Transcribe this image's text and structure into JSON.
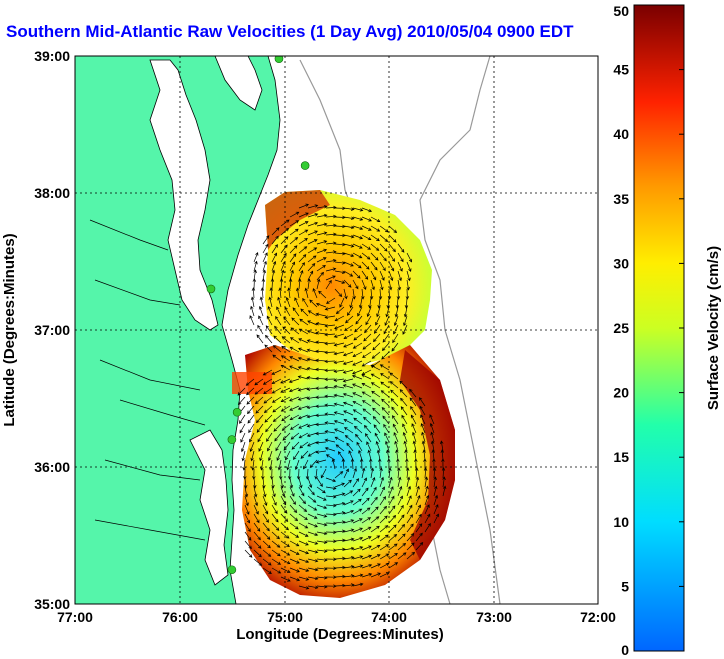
{
  "title": "Southern Mid-Atlantic Raw Velocities (1 Day Avg) 2010/05/04 0900 EDT",
  "xlabel": "Longitude (Degrees:Minutes)",
  "ylabel": "Latitude (Degrees:Minutes)",
  "x_ticks": [
    "77:00",
    "76:00",
    "75:00",
    "74:00",
    "73:00",
    "72:00"
  ],
  "y_ticks": [
    "39:00",
    "38:00",
    "37:00",
    "36:00",
    "35:00"
  ],
  "colorbar": {
    "label": "Surface Velocity (cm/s)",
    "ticks": [
      "0",
      "5",
      "10",
      "15",
      "20",
      "25",
      "30",
      "35",
      "40",
      "45",
      "50"
    ],
    "min": 0,
    "max": 50
  },
  "colors": {
    "land": "#55f5aa",
    "water": "#ffffff",
    "title": "#0000ff",
    "station": "#33cc33",
    "bathymetry": "#999999"
  },
  "map_data": {
    "lon_range": [
      -77,
      -72
    ],
    "lat_range": [
      35,
      39
    ],
    "grid": true,
    "stations": [
      {
        "lon": -75.05,
        "lat": 38.98
      },
      {
        "lon": -74.8,
        "lat": 38.2
      },
      {
        "lon": -75.7,
        "lat": 37.3
      },
      {
        "lon": -75.45,
        "lat": 36.4
      },
      {
        "lon": -75.5,
        "lat": 36.2
      },
      {
        "lon": -75.5,
        "lat": 35.25
      }
    ],
    "regions": [
      {
        "name": "northern-lobe",
        "lon_range": [
          -75.35,
          -73.75
        ],
        "lat_range": [
          36.6,
          37.95
        ],
        "typical_speed_cm_s": 32
      },
      {
        "name": "southern-lobe",
        "lon_range": [
          -75.7,
          -73.45
        ],
        "lat_range": [
          35.1,
          36.85
        ],
        "typical_speed_cm_s": 22
      }
    ]
  }
}
